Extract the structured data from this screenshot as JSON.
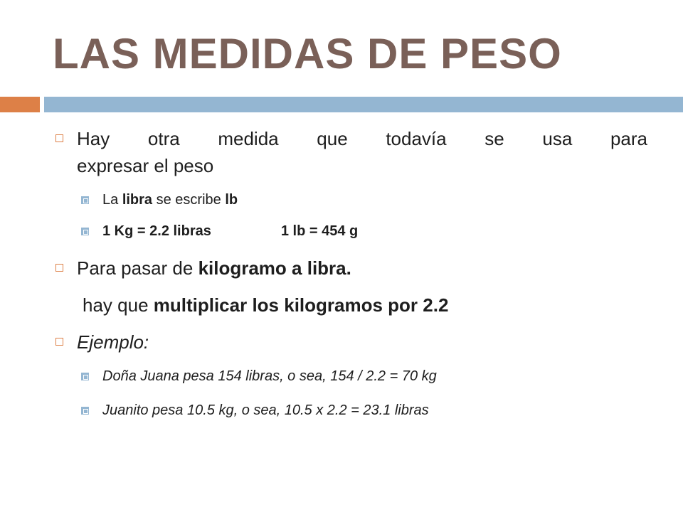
{
  "slide": {
    "title": "LAS MEDIDAS DE PESO",
    "colors": {
      "title": "#7a6058",
      "accent_orange": "#dd8047",
      "accent_blue": "#94b6d2"
    },
    "bullets": {
      "b1_line1": "Hay otra medida que todavía se usa para",
      "b1_line2": "expresar el peso",
      "s1_pre": "La ",
      "s1_bold1": "libra",
      "s1_mid": " se escribe ",
      "s1_bold2": "lb",
      "s2_a": "1 Kg = 2.2 libras",
      "s2_b": "1 lb = 454 g",
      "b2_pre": "Para pasar de ",
      "b2_bold": "kilogramo a libra.",
      "plain_pre": "hay que ",
      "plain_bold": "multiplicar los kilogramos por 2.2",
      "b3": "Ejemplo:",
      "s3": "Doña Juana pesa 154 libras, o sea, 154 / 2.2 = 70 kg",
      "s4": "Juanito pesa 10.5 kg, o sea, 10.5 x 2.2 = 23.1 libras"
    }
  }
}
